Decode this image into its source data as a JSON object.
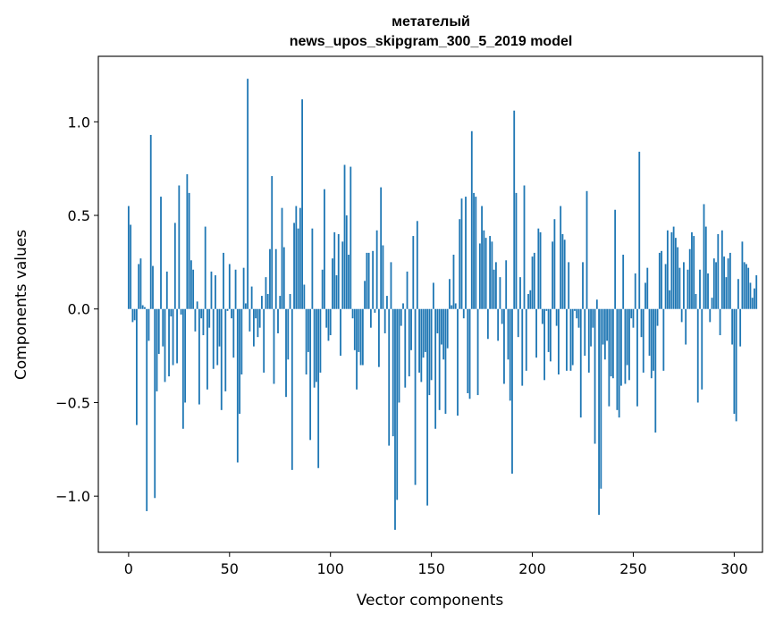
{
  "chart_data": {
    "type": "bar",
    "title_line1": "метателый",
    "title_line2": "news_upos_skipgram_300_5_2019 model",
    "xlabel": "Vector components",
    "ylabel": "Components values",
    "xlim": [
      -15,
      314
    ],
    "ylim": [
      -1.3,
      1.35
    ],
    "xticks": [
      0,
      50,
      100,
      150,
      200,
      250,
      300
    ],
    "yticks": [
      -1.0,
      -0.5,
      0.0,
      0.5,
      1.0
    ],
    "ytick_labels": [
      "−1.0",
      "−0.5",
      "0.0",
      "0.5",
      "1.0"
    ],
    "xtick_labels": [
      "0",
      "50",
      "100",
      "150",
      "200",
      "250",
      "300"
    ],
    "bar_color": "#1f77b4",
    "values": [
      0.55,
      0.45,
      -0.07,
      -0.06,
      -0.62,
      0.24,
      0.27,
      0.02,
      0.01,
      -1.08,
      -0.17,
      0.93,
      0.23,
      -1.01,
      -0.44,
      -0.24,
      0.6,
      -0.2,
      -0.39,
      0.2,
      -0.36,
      -0.04,
      -0.3,
      0.46,
      -0.29,
      0.66,
      -0.03,
      -0.64,
      -0.5,
      0.72,
      0.62,
      0.26,
      0.21,
      -0.12,
      0.04,
      -0.51,
      -0.05,
      -0.14,
      0.44,
      -0.43,
      -0.1,
      0.2,
      -0.32,
      0.18,
      -0.3,
      -0.2,
      -0.54,
      0.3,
      -0.44,
      -0.01,
      0.24,
      -0.05,
      -0.26,
      0.21,
      -0.82,
      -0.56,
      -0.35,
      0.22,
      0.03,
      1.23,
      -0.12,
      0.12,
      -0.2,
      -0.05,
      -0.15,
      -0.1,
      0.07,
      -0.34,
      0.17,
      0.08,
      0.32,
      0.71,
      -0.4,
      0.32,
      -0.13,
      0.07,
      0.54,
      0.33,
      -0.47,
      -0.27,
      0.08,
      -0.86,
      0.46,
      0.55,
      0.43,
      0.54,
      1.12,
      0.13,
      -0.35,
      -0.23,
      -0.7,
      0.43,
      -0.42,
      -0.39,
      -0.85,
      -0.34,
      0.21,
      0.64,
      -0.1,
      -0.17,
      -0.14,
      0.27,
      0.41,
      0.18,
      0.4,
      -0.25,
      0.36,
      0.77,
      0.5,
      0.29,
      0.76,
      -0.05,
      -0.22,
      -0.43,
      -0.23,
      -0.3,
      -0.3,
      0.15,
      0.3,
      0.3,
      -0.1,
      0.31,
      -0.02,
      0.42,
      -0.31,
      0.65,
      0.34,
      -0.13,
      0.07,
      -0.73,
      0.25,
      -0.68,
      -1.18,
      -1.02,
      -0.5,
      -0.09,
      0.03,
      -0.42,
      0.2,
      -0.36,
      -0.22,
      0.39,
      -0.94,
      0.47,
      -0.34,
      -0.39,
      -0.26,
      -0.23,
      -1.05,
      -0.46,
      -0.38,
      0.14,
      -0.64,
      -0.13,
      -0.54,
      -0.19,
      -0.27,
      -0.56,
      -0.21,
      0.16,
      0.02,
      0.29,
      0.03,
      -0.57,
      0.48,
      0.59,
      -0.05,
      0.6,
      -0.45,
      -0.48,
      0.95,
      0.62,
      0.6,
      -0.46,
      0.35,
      0.55,
      0.42,
      0.38,
      -0.16,
      0.39,
      0.36,
      0.21,
      0.25,
      -0.17,
      0.17,
      -0.08,
      -0.4,
      0.26,
      -0.27,
      -0.49,
      -0.88,
      1.06,
      0.62,
      -0.15,
      0.17,
      -0.41,
      0.66,
      -0.33,
      0.08,
      0.1,
      0.28,
      0.3,
      -0.26,
      0.43,
      0.41,
      -0.08,
      -0.38,
      -0.01,
      -0.23,
      -0.28,
      0.36,
      0.48,
      -0.09,
      -0.35,
      0.55,
      0.4,
      0.37,
      -0.33,
      0.25,
      -0.33,
      -0.3,
      -0.01,
      -0.05,
      -0.1,
      -0.58,
      0.25,
      -0.25,
      0.63,
      -0.34,
      -0.2,
      -0.1,
      -0.72,
      0.05,
      -1.1,
      -0.96,
      -0.19,
      -0.27,
      -0.17,
      -0.52,
      -0.36,
      -0.37,
      0.53,
      -0.54,
      -0.58,
      -0.41,
      0.29,
      -0.4,
      -0.3,
      -0.38,
      -0.05,
      -0.1,
      0.19,
      -0.52,
      0.84,
      -0.15,
      -0.34,
      0.14,
      0.22,
      -0.25,
      -0.37,
      -0.33,
      -0.66,
      -0.09,
      0.3,
      0.31,
      -0.33,
      0.24,
      0.42,
      0.1,
      0.41,
      0.44,
      0.38,
      0.33,
      0.22,
      -0.07,
      0.25,
      -0.19,
      0.21,
      0.32,
      0.41,
      0.39,
      0.08,
      -0.5,
      0.21,
      -0.43,
      0.56,
      0.44,
      0.19,
      -0.07,
      0.06,
      0.27,
      0.25,
      0.4,
      -0.14,
      0.42,
      0.28,
      0.17,
      0.27,
      0.3,
      -0.19,
      -0.56,
      -0.6,
      0.16,
      -0.2,
      0.36,
      0.25,
      0.24,
      0.22,
      0.14,
      0.06,
      0.11,
      0.18
    ]
  }
}
